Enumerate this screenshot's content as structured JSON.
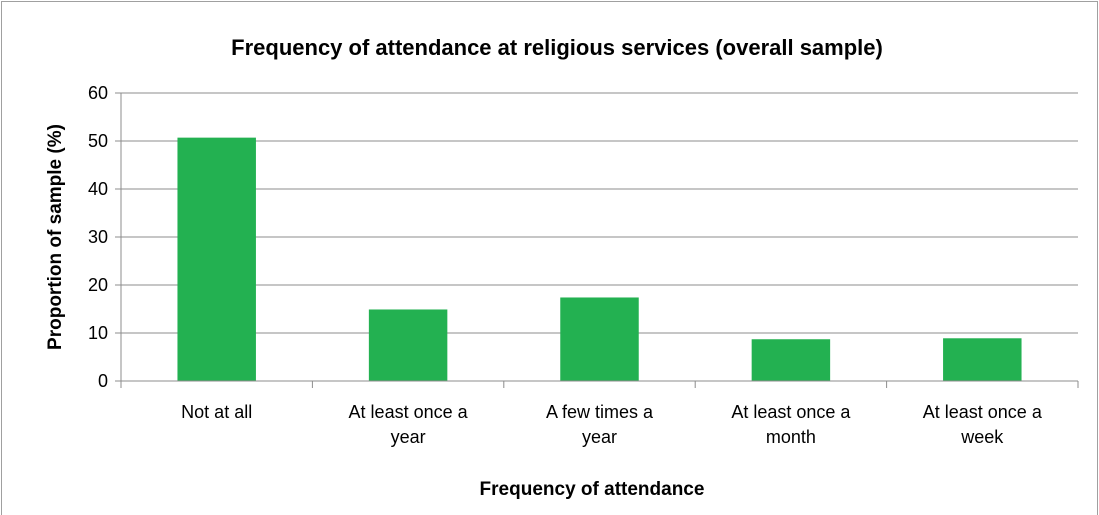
{
  "chart_data": {
    "type": "bar",
    "title": "Frequency of attendance at religious services (overall sample)",
    "xlabel": "Frequency of attendance",
    "ylabel": "Proportion of sample (%)",
    "categories": [
      [
        "Not at all"
      ],
      [
        "At least once a",
        "year"
      ],
      [
        "A few times a",
        "year"
      ],
      [
        "At least once a",
        "month"
      ],
      [
        "At least once a",
        "week"
      ]
    ],
    "values": [
      50.7,
      14.9,
      17.4,
      8.7,
      8.9
    ],
    "ylim": [
      0,
      60
    ],
    "yticks": [
      0,
      10,
      20,
      30,
      40,
      50,
      60
    ],
    "grid": true,
    "legend": "none",
    "bar_color": "#23b151",
    "grid_color": "#8c8c8c",
    "frame_color": "#a0a0a0"
  }
}
